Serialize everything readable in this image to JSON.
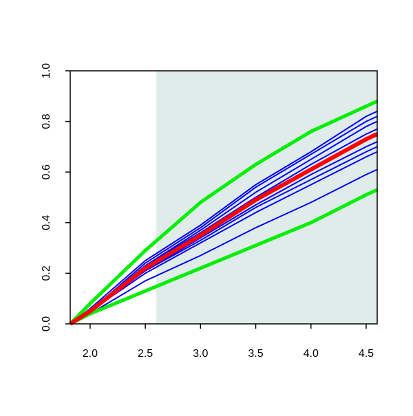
{
  "chart_data": {
    "type": "line",
    "x": [
      1.82,
      2.0,
      2.5,
      3.0,
      3.5,
      4.0,
      4.5,
      4.6
    ],
    "xlim": [
      1.82,
      4.6
    ],
    "ylim": [
      0,
      1
    ],
    "xticks": [
      {
        "value": 2,
        "label": "2.0"
      },
      2.5,
      {
        "value": 3,
        "label": "3.0"
      },
      3.5,
      {
        "value": 4,
        "label": "4.0"
      },
      4.5
    ],
    "yticks": [
      {
        "value": 0,
        "label": "0.0"
      },
      0.2,
      0.4,
      0.6,
      0.8,
      {
        "value": 1,
        "label": "1.0"
      }
    ],
    "shaded_xrange": [
      2.6,
      4.6
    ],
    "shade_color": "#dfecea",
    "series": [
      {
        "color": "#0000ff",
        "line_width": 2,
        "values": [
          0,
          0.06,
          0.25,
          0.39,
          0.55,
          0.68,
          0.82,
          0.84
        ]
      },
      {
        "color": "#0000ff",
        "line_width": 2,
        "values": [
          0,
          0.05,
          0.24,
          0.38,
          0.54,
          0.67,
          0.8,
          0.82
        ]
      },
      {
        "color": "#0000ff",
        "line_width": 2,
        "values": [
          0,
          0.05,
          0.23,
          0.37,
          0.52,
          0.65,
          0.78,
          0.8
        ]
      },
      {
        "color": "#0000ff",
        "line_width": 2,
        "values": [
          0,
          0.05,
          0.23,
          0.36,
          0.5,
          0.63,
          0.75,
          0.77
        ]
      },
      {
        "color": "#0000ff",
        "line_width": 2,
        "values": [
          0,
          0.05,
          0.21,
          0.34,
          0.47,
          0.59,
          0.7,
          0.72
        ]
      },
      {
        "color": "#0000ff",
        "line_width": 2,
        "values": [
          0,
          0.05,
          0.21,
          0.33,
          0.46,
          0.57,
          0.68,
          0.7
        ]
      },
      {
        "color": "#0000ff",
        "line_width": 2,
        "values": [
          0,
          0.05,
          0.2,
          0.32,
          0.44,
          0.55,
          0.66,
          0.68
        ]
      },
      {
        "color": "#0000ff",
        "line_width": 2,
        "values": [
          0,
          0.04,
          0.17,
          0.27,
          0.38,
          0.48,
          0.59,
          0.61
        ]
      },
      {
        "color": "#00ee00",
        "line_width": 5,
        "values": [
          0,
          0.08,
          0.29,
          0.48,
          0.63,
          0.76,
          0.86,
          0.88
        ]
      },
      {
        "color": "#00ee00",
        "line_width": 5,
        "values": [
          0,
          0.04,
          0.13,
          0.22,
          0.31,
          0.4,
          0.51,
          0.53
        ]
      },
      {
        "color": "#ff0000",
        "line_width": 6,
        "values": [
          0,
          0.05,
          0.22,
          0.35,
          0.49,
          0.61,
          0.73,
          0.75
        ]
      }
    ]
  }
}
